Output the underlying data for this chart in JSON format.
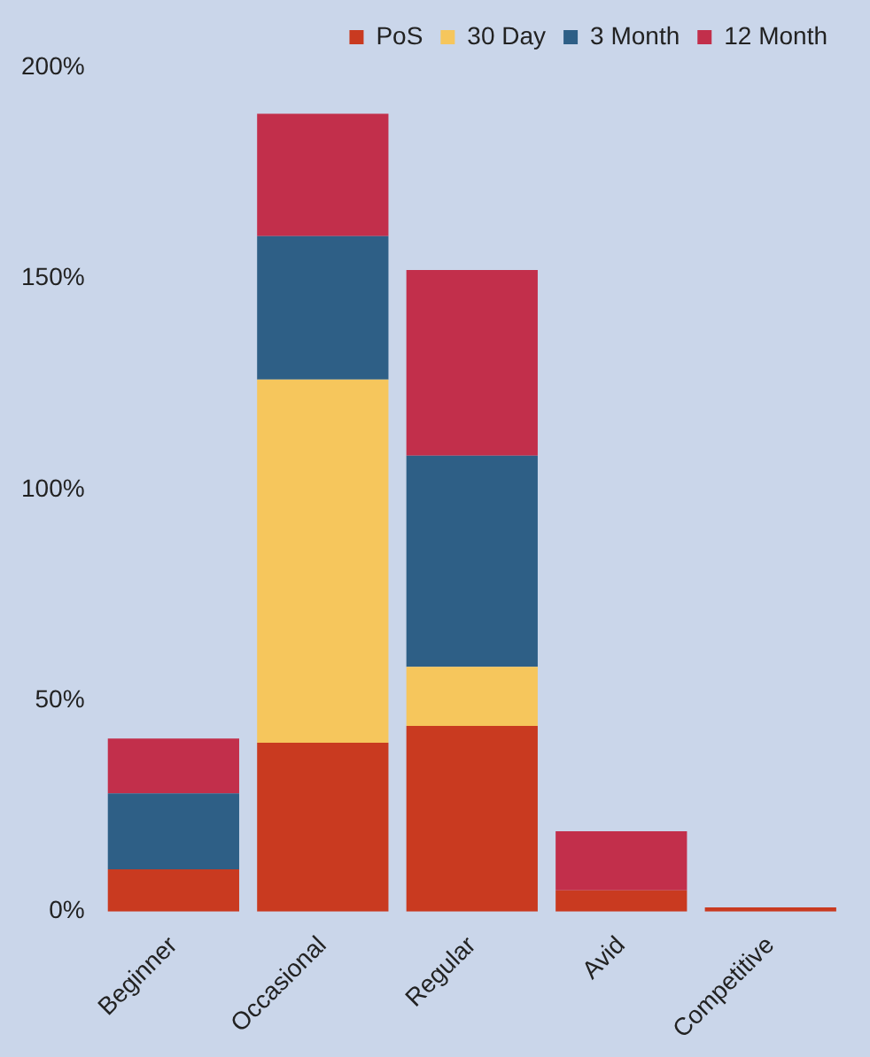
{
  "chart_data": {
    "type": "bar",
    "stacked": true,
    "categories": [
      "Beginner",
      "Occasional",
      "Regular",
      "Avid",
      "Competitive"
    ],
    "series": [
      {
        "name": "PoS",
        "color": "#c93a20",
        "values": [
          10,
          40,
          44,
          5,
          1
        ]
      },
      {
        "name": "30 Day",
        "color": "#f6c65c",
        "values": [
          0,
          86,
          14,
          0,
          0
        ]
      },
      {
        "name": "3 Month",
        "color": "#2e5f86",
        "values": [
          18,
          34,
          50,
          0,
          0
        ]
      },
      {
        "name": "12 Month",
        "color": "#c22f4b",
        "values": [
          13,
          29,
          44,
          14,
          0
        ]
      }
    ],
    "ylim": [
      0,
      200
    ],
    "yticks": [
      {
        "value": 0,
        "label": "0%"
      },
      {
        "value": 50,
        "label": "50%"
      },
      {
        "value": 100,
        "label": "100%"
      },
      {
        "value": 150,
        "label": "150%"
      },
      {
        "value": 200,
        "label": "200%"
      }
    ],
    "grid": false,
    "legend": "top"
  }
}
